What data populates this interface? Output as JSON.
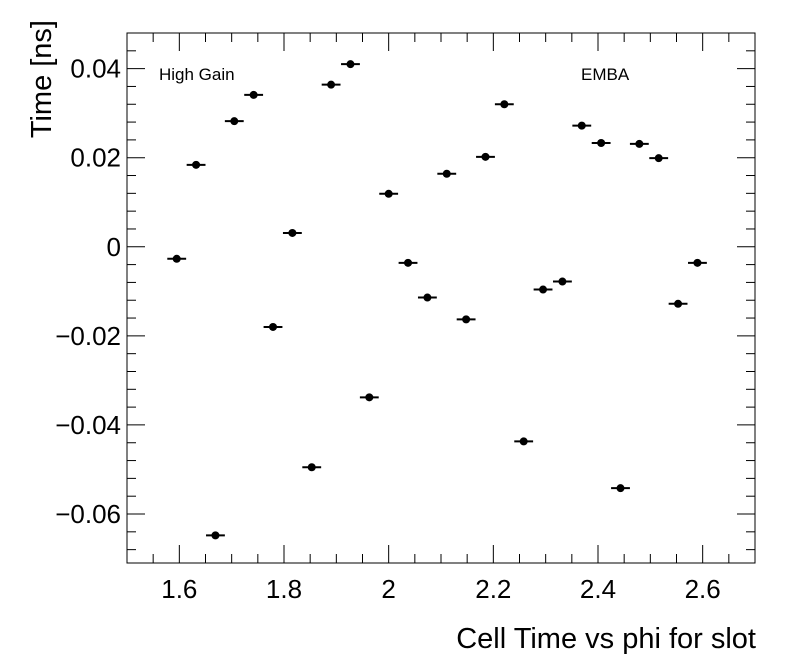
{
  "chart_data": {
    "type": "scatter",
    "xlabel": "Cell Time vs phi for slot",
    "ylabel": "Time [ns]",
    "xlim": [
      1.5,
      2.7
    ],
    "ylim": [
      -0.071,
      0.048
    ],
    "x_ticks": [
      1.6,
      1.8,
      2.0,
      2.2,
      2.4,
      2.6
    ],
    "x_tick_labels": [
      "1.6",
      "1.8",
      "2",
      "2.2",
      "2.4",
      "2.6"
    ],
    "y_ticks": [
      -0.06,
      -0.04,
      -0.02,
      0,
      0.02,
      0.04
    ],
    "y_tick_labels": [
      "−0.06",
      "−0.04",
      "−0.02",
      "0",
      "0.02",
      "0.04"
    ],
    "annotations": [
      "High Gain",
      "EMBA"
    ],
    "grid": false,
    "marker_color": "#000000",
    "x_error": 0.018,
    "points": [
      {
        "x": 1.595,
        "y": -0.0027
      },
      {
        "x": 1.632,
        "y": 0.0184
      },
      {
        "x": 1.669,
        "y": -0.0648
      },
      {
        "x": 1.705,
        "y": 0.0282
      },
      {
        "x": 1.742,
        "y": 0.0341
      },
      {
        "x": 1.779,
        "y": -0.018
      },
      {
        "x": 1.816,
        "y": 0.0031
      },
      {
        "x": 1.853,
        "y": -0.0495
      },
      {
        "x": 1.89,
        "y": 0.0364
      },
      {
        "x": 1.927,
        "y": 0.041
      },
      {
        "x": 1.963,
        "y": -0.0338
      },
      {
        "x": 2.0,
        "y": 0.0119
      },
      {
        "x": 2.037,
        "y": -0.0036
      },
      {
        "x": 2.074,
        "y": -0.0114
      },
      {
        "x": 2.111,
        "y": 0.0164
      },
      {
        "x": 2.148,
        "y": -0.0163
      },
      {
        "x": 2.185,
        "y": 0.0202
      },
      {
        "x": 2.221,
        "y": 0.032
      },
      {
        "x": 2.258,
        "y": -0.0437
      },
      {
        "x": 2.295,
        "y": -0.0096
      },
      {
        "x": 2.332,
        "y": -0.0078
      },
      {
        "x": 2.369,
        "y": 0.0272
      },
      {
        "x": 2.406,
        "y": 0.0233
      },
      {
        "x": 2.443,
        "y": -0.0542
      },
      {
        "x": 2.479,
        "y": 0.0231
      },
      {
        "x": 2.516,
        "y": 0.0199
      },
      {
        "x": 2.553,
        "y": -0.0128
      },
      {
        "x": 2.59,
        "y": -0.0036
      }
    ]
  }
}
